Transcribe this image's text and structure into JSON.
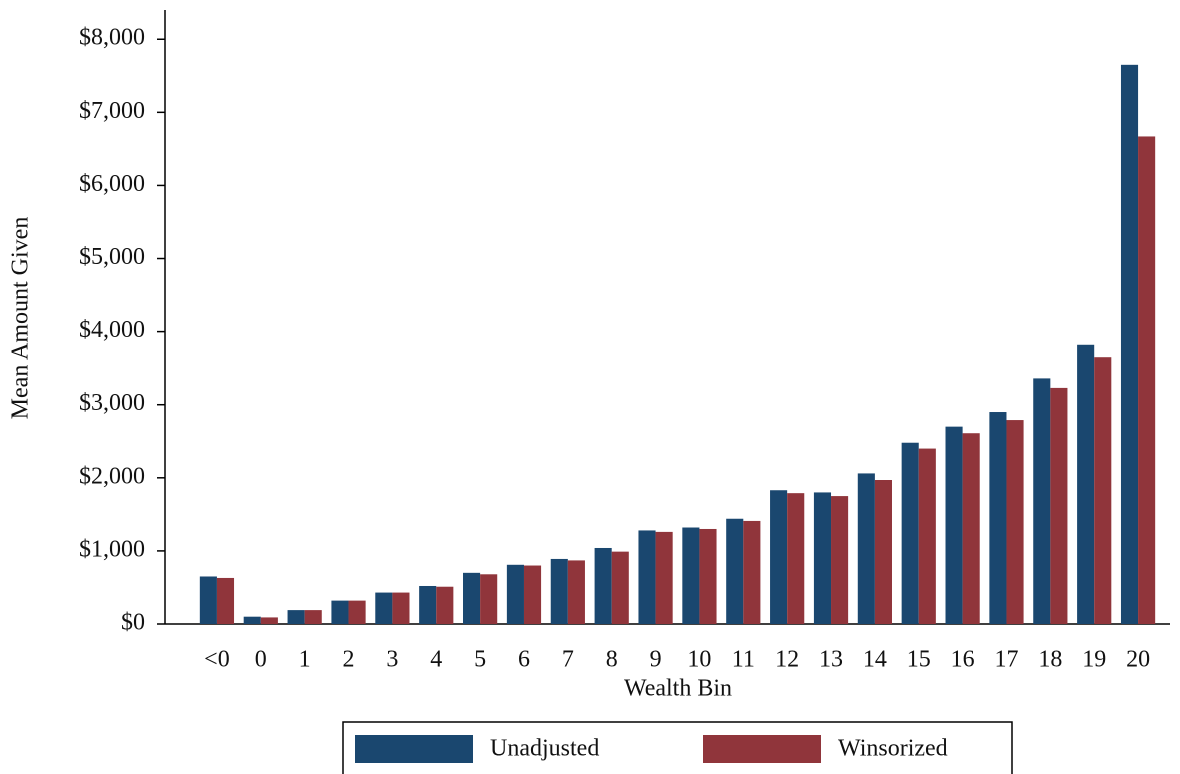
{
  "chart_data": {
    "type": "bar",
    "x_label": "Wealth Bin",
    "y_label": "Mean Amount Given",
    "categories": [
      "<0",
      "0",
      "1",
      "2",
      "3",
      "4",
      "5",
      "6",
      "7",
      "8",
      "9",
      "10",
      "11",
      "12",
      "13",
      "14",
      "15",
      "16",
      "17",
      "18",
      "19",
      "20"
    ],
    "series": [
      {
        "name": "Unadjusted",
        "color": "#1a476f",
        "values": [
          650,
          100,
          190,
          320,
          430,
          520,
          700,
          810,
          890,
          1040,
          1280,
          1320,
          1440,
          1830,
          1800,
          2060,
          2480,
          2700,
          2900,
          3360,
          3820,
          7650
        ]
      },
      {
        "name": "Winsorized",
        "color": "#90353b",
        "values": [
          630,
          90,
          190,
          320,
          430,
          510,
          680,
          800,
          870,
          990,
          1260,
          1300,
          1410,
          1790,
          1750,
          1970,
          2400,
          2610,
          2790,
          3230,
          3650,
          6670
        ]
      }
    ],
    "ylim": [
      0,
      8400
    ],
    "yticks": [
      {
        "value": 0,
        "label": "$0"
      },
      {
        "value": 1000,
        "label": "$1,000"
      },
      {
        "value": 2000,
        "label": "$2,000"
      },
      {
        "value": 3000,
        "label": "$3,000"
      },
      {
        "value": 4000,
        "label": "$4,000"
      },
      {
        "value": 5000,
        "label": "$5,000"
      },
      {
        "value": 6000,
        "label": "$6,000"
      },
      {
        "value": 7000,
        "label": "$7,000"
      },
      {
        "value": 8000,
        "label": "$8,000"
      }
    ],
    "grid": false,
    "legend_position": "bottom"
  }
}
